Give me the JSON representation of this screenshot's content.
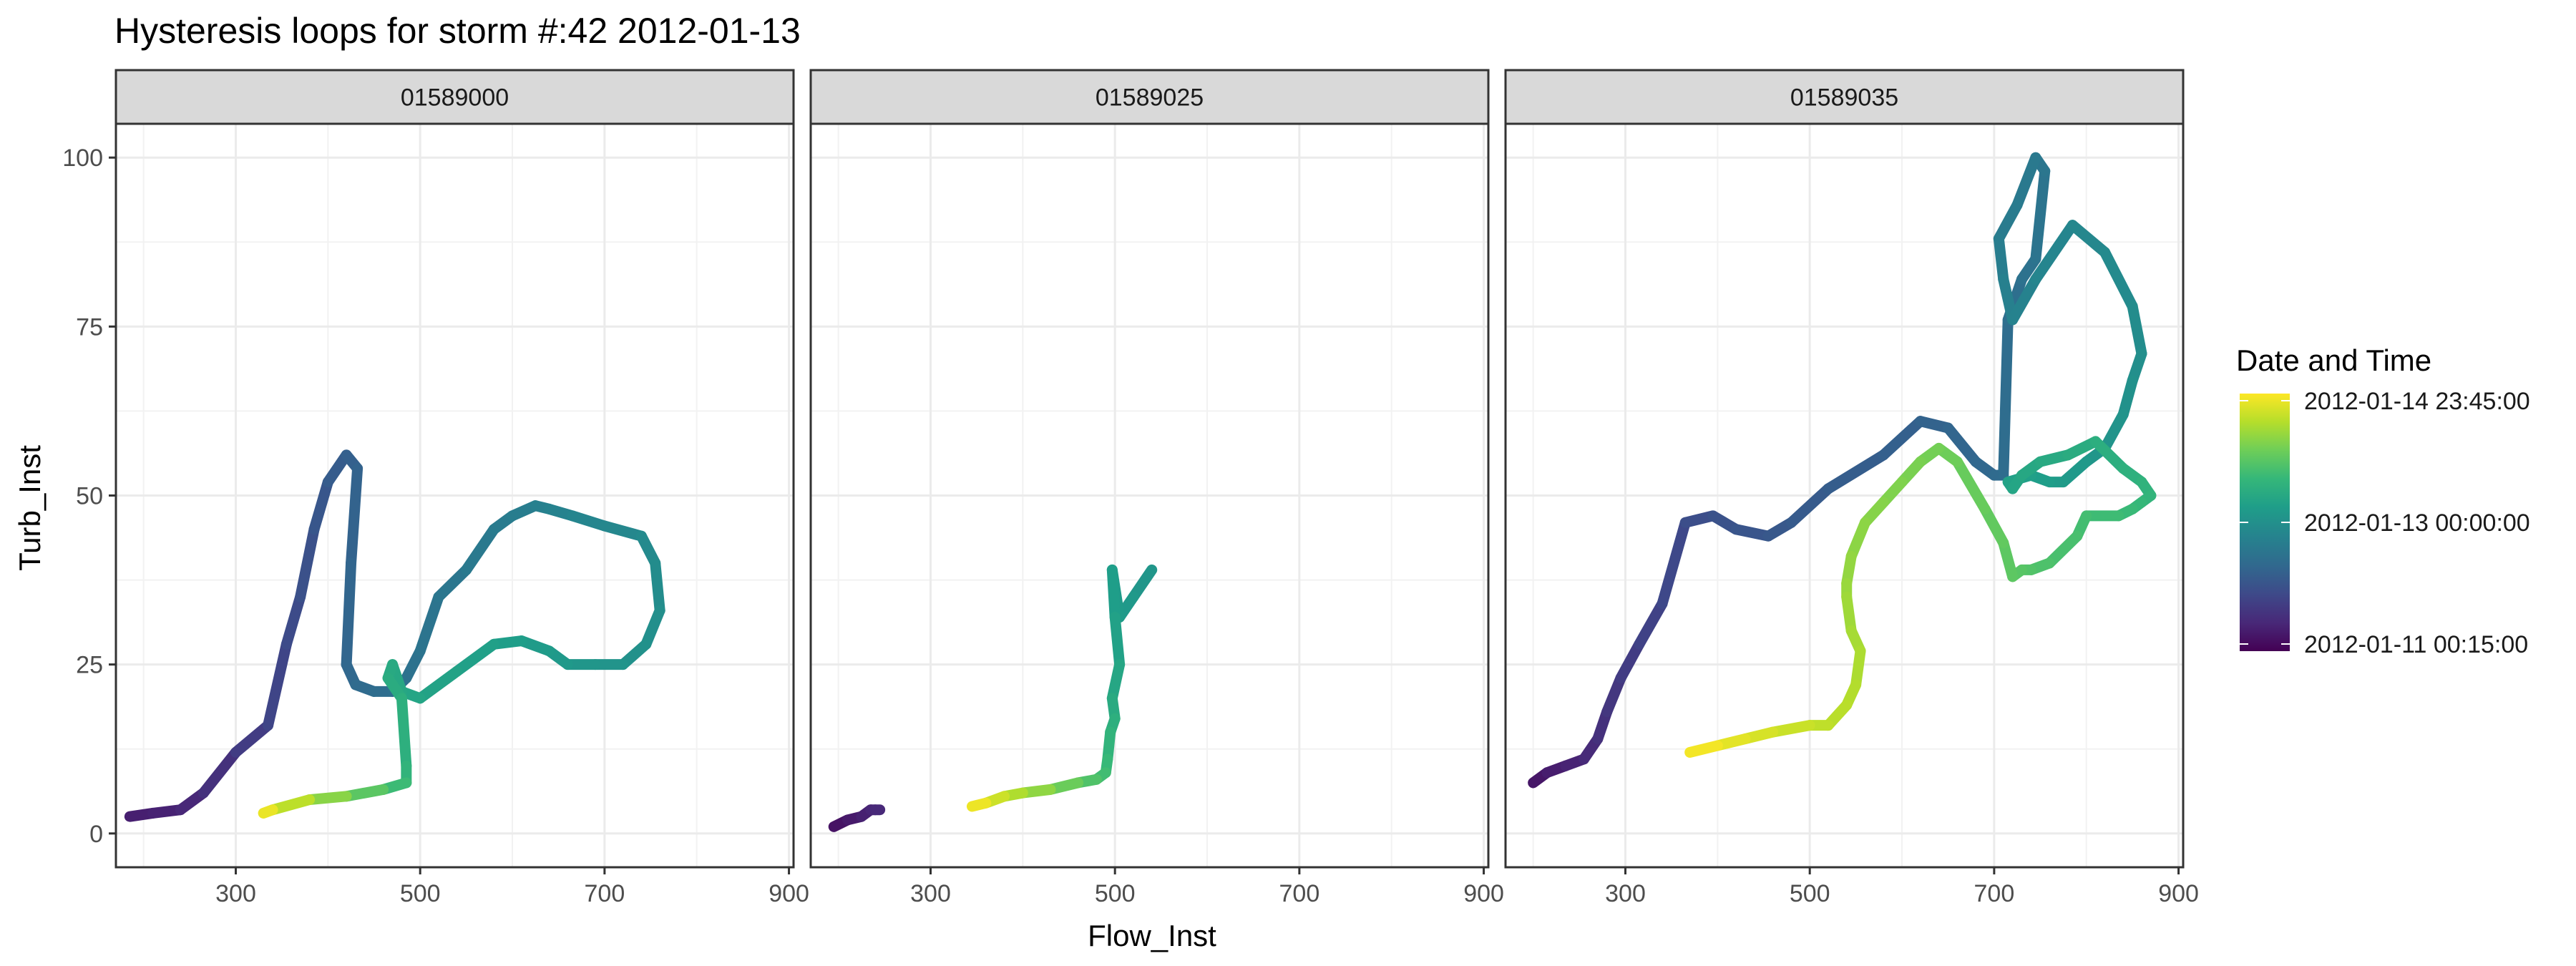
{
  "chart_data": {
    "type": "line",
    "title": "Hysteresis loops for storm #:42   2012-01-13",
    "xlabel": "Flow_Inst",
    "ylabel": "Turb_Inst",
    "xlim": [
      170,
      905
    ],
    "ylim": [
      -5,
      105
    ],
    "x_ticks": [
      300,
      500,
      700,
      900
    ],
    "y_ticks": [
      0,
      25,
      50,
      75,
      100
    ],
    "grid": true,
    "legend": {
      "title": "Date and Time",
      "position": "right",
      "type": "colorbar",
      "labels": [
        "2012-01-14 23:45:00",
        "2012-01-13 00:00:00",
        "2012-01-11 00:15:00"
      ],
      "label_values": [
        1,
        0.5,
        0
      ],
      "colors": [
        "#fde725",
        "#b5de2b",
        "#6ece58",
        "#35b779",
        "#1f9e89",
        "#26828e",
        "#31688e",
        "#3e4989",
        "#482878",
        "#440154"
      ]
    },
    "facets": [
      {
        "label": "01589000",
        "x": [
          185,
          210,
          240,
          265,
          300,
          335,
          355,
          370,
          385,
          400,
          420,
          432,
          425,
          420,
          430,
          450,
          470,
          485,
          500,
          520,
          550,
          580,
          600,
          625,
          640,
          665,
          700,
          740,
          755,
          760,
          745,
          720,
          690,
          660,
          640,
          610,
          580,
          540,
          500,
          480,
          470,
          465,
          480,
          485,
          485,
          460,
          420,
          380,
          340,
          330
        ],
        "y": [
          2.5,
          3,
          3.5,
          6,
          12,
          16,
          28,
          35,
          45,
          52,
          56,
          54,
          40,
          25,
          22,
          21,
          21,
          23,
          27,
          35,
          39,
          45,
          47,
          48.5,
          48,
          47,
          45.5,
          44,
          40,
          33,
          28,
          25,
          25,
          25,
          27,
          28.5,
          28,
          24,
          20,
          21,
          25,
          23,
          20,
          10,
          7.5,
          6.5,
          5.5,
          5,
          3.5,
          3
        ],
        "t": [
          0.08,
          0.09,
          0.1,
          0.12,
          0.16,
          0.2,
          0.22,
          0.24,
          0.26,
          0.28,
          0.3,
          0.31,
          0.32,
          0.33,
          0.34,
          0.35,
          0.36,
          0.37,
          0.38,
          0.39,
          0.4,
          0.41,
          0.42,
          0.43,
          0.44,
          0.45,
          0.46,
          0.47,
          0.48,
          0.49,
          0.5,
          0.51,
          0.52,
          0.53,
          0.54,
          0.55,
          0.56,
          0.57,
          0.58,
          0.59,
          0.6,
          0.61,
          0.62,
          0.64,
          0.66,
          0.7,
          0.78,
          0.86,
          0.94,
          1.0
        ]
      },
      {
        "label": "01589025",
        "x": [
          195,
          210,
          225,
          235,
          240,
          245
        ],
        "y": [
          1,
          2,
          2.5,
          3.5,
          3.5,
          3.5
        ],
        "t": [
          0.04,
          0.06,
          0.08,
          0.1,
          0.11,
          0.12
        ],
        "x2": [
          540,
          520,
          505,
          497,
          500,
          505,
          497,
          500,
          495,
          492,
          490,
          480,
          460,
          430,
          400,
          380,
          360,
          345
        ],
        "y2": [
          39,
          35,
          32,
          39,
          32,
          25,
          20,
          17,
          15,
          11,
          9,
          8,
          7.5,
          6.5,
          6,
          5.5,
          4.5,
          4
        ],
        "t2": [
          0.52,
          0.53,
          0.54,
          0.55,
          0.56,
          0.58,
          0.6,
          0.62,
          0.64,
          0.66,
          0.68,
          0.7,
          0.74,
          0.8,
          0.86,
          0.9,
          0.95,
          1.0
        ]
      },
      {
        "label": "01589035",
        "x": [
          200,
          215,
          235,
          255,
          270,
          280,
          295,
          315,
          340,
          365,
          395,
          420,
          455,
          480,
          520,
          580,
          620,
          650,
          680,
          700,
          710,
          715,
          730,
          745,
          755,
          745,
          725,
          705,
          710,
          720,
          745,
          785,
          820,
          850,
          860,
          850,
          840,
          820,
          800,
          775,
          760,
          740,
          715,
          720,
          730,
          750,
          780,
          810,
          840,
          860,
          870,
          860,
          850,
          835,
          800,
          790,
          760,
          740,
          730,
          720,
          710,
          690,
          660,
          640,
          620,
          600,
          580,
          560,
          545,
          540,
          540,
          545,
          555,
          550,
          540,
          520,
          500,
          460,
          430,
          400,
          370
        ],
        "y": [
          7.5,
          9,
          10,
          11,
          14,
          18,
          23,
          28,
          34,
          46,
          47,
          45,
          44,
          46,
          51,
          56,
          61,
          60,
          55,
          53,
          53,
          76,
          82,
          85,
          98,
          100,
          93,
          88,
          82,
          76,
          82,
          90,
          86,
          78,
          71,
          67,
          62,
          57,
          55,
          52,
          52,
          53,
          52,
          51,
          53,
          55,
          56,
          58,
          54,
          52,
          50,
          49,
          48,
          47,
          47,
          44,
          40,
          39,
          39,
          38,
          43,
          48,
          55,
          57,
          55,
          52,
          49,
          46,
          41,
          37,
          35,
          30,
          27,
          22,
          19,
          16,
          16,
          15,
          14,
          13,
          12
        ],
        "t": [
          0.05,
          0.07,
          0.09,
          0.11,
          0.13,
          0.15,
          0.17,
          0.19,
          0.21,
          0.23,
          0.25,
          0.26,
          0.27,
          0.28,
          0.29,
          0.3,
          0.31,
          0.32,
          0.33,
          0.34,
          0.35,
          0.36,
          0.37,
          0.38,
          0.39,
          0.4,
          0.41,
          0.42,
          0.43,
          0.44,
          0.45,
          0.46,
          0.47,
          0.48,
          0.49,
          0.5,
          0.51,
          0.52,
          0.53,
          0.54,
          0.55,
          0.56,
          0.57,
          0.58,
          0.59,
          0.6,
          0.61,
          0.62,
          0.63,
          0.64,
          0.65,
          0.66,
          0.67,
          0.68,
          0.69,
          0.7,
          0.71,
          0.72,
          0.73,
          0.74,
          0.75,
          0.76,
          0.77,
          0.78,
          0.79,
          0.8,
          0.81,
          0.82,
          0.83,
          0.84,
          0.85,
          0.86,
          0.87,
          0.88,
          0.89,
          0.9,
          0.91,
          0.93,
          0.95,
          0.97,
          1.0
        ]
      }
    ]
  }
}
